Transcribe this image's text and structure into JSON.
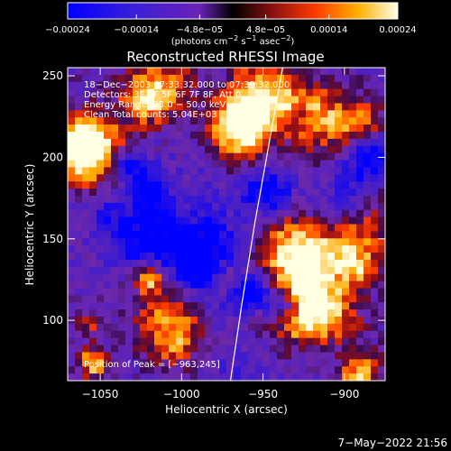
{
  "chart_data": {
    "type": "heatmap",
    "title": "Reconstructed RHESSI Image",
    "xlabel": "Heliocentric X (arcsec)",
    "ylabel": "Heliocentric Y (arcsec)",
    "xlim": [
      -1070,
      -875
    ],
    "ylim": [
      63,
      255
    ],
    "x_ticks": [
      -1050,
      -1000,
      -950,
      -900
    ],
    "x_tick_labels": [
      "−1050",
      "−1000",
      "−950",
      "−900"
    ],
    "y_ticks": [
      100,
      150,
      200,
      250
    ],
    "y_tick_labels": [
      "100",
      "150",
      "200",
      "250"
    ],
    "colorbar": {
      "range": [
        -0.00024,
        0.00024
      ],
      "ticks": [
        -0.00024,
        -0.00014,
        -4.8e-05,
        4.8e-05,
        0.00014,
        0.00024
      ],
      "tick_labels": [
        "−0.00024",
        "−0.00014",
        "−4.8e−05",
        "4.8e−05",
        "0.00014",
        "0.00024"
      ],
      "label_parts": [
        "(photons cm",
        "−2",
        " s",
        "−1",
        " asec",
        "−2",
        ")"
      ]
    },
    "annotations": [
      "18−Dec−2003 07:33:32.000 to 07:39:32.000",
      "Detectors: 3F 4F 5F 6F 7F 8F, Att 0",
      "Energy Range: 25.0 − 50.0 keV",
      "Clean      Total counts: 5.04E+03"
    ],
    "peak_text": "Position of Peak = [−963,245]",
    "limb_curve": [
      [
        -970,
        63
      ],
      [
        -963,
        110
      ],
      [
        -955,
        160
      ],
      [
        -946,
        210
      ],
      [
        -938,
        255
      ]
    ],
    "grid": false
  },
  "footer": {
    "date": "7−May−2022 21:56"
  }
}
